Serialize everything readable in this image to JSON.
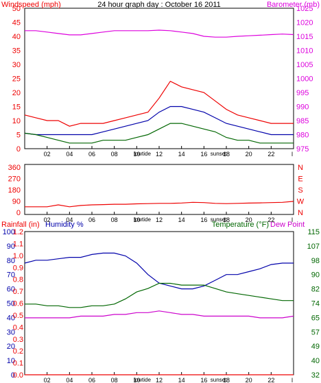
{
  "colors": {
    "red": "#ee0000",
    "magenta": "#dd00dd",
    "blue": "#0000aa",
    "green": "#006600",
    "dewpoint": "#cc00cc",
    "black": "#000000"
  },
  "x_tick_labels": [
    "02",
    "04",
    "06",
    "08",
    "10",
    "12",
    "14",
    "16",
    "18",
    "20",
    "22"
  ],
  "x_end_label": "l",
  "event_labels": {
    "lowtide": "lowtide",
    "sunset": "sunset"
  },
  "chart_data": [
    {
      "type": "line",
      "title": "24 hour graph day : October 16 2011",
      "left_label": "Windspeed (mph)",
      "right_label": "Barometer (mb)",
      "ylim_left": [
        0,
        50
      ],
      "ylim_right": [
        975,
        1025
      ],
      "yticks_left": [
        "0",
        "5",
        "10",
        "15",
        "20",
        "25",
        "30",
        "35",
        "40",
        "45",
        "50"
      ],
      "yticks_right": [
        "975",
        "980",
        "985",
        "990",
        "995",
        "1000",
        "1005",
        "1010",
        "1015",
        "1020",
        "1025"
      ],
      "x": [
        0,
        1,
        2,
        3,
        4,
        5,
        6,
        7,
        8,
        9,
        10,
        11,
        12,
        13,
        14,
        15,
        16,
        17,
        18,
        19,
        20,
        21,
        22,
        23,
        24
      ],
      "series": [
        {
          "color": "red",
          "values": [
            12,
            11,
            10,
            10,
            8,
            9,
            9,
            9,
            10,
            11,
            12,
            13,
            18,
            24,
            22,
            21,
            20,
            17,
            14,
            12,
            11,
            10,
            9,
            9,
            9
          ]
        },
        {
          "color": "blue",
          "values": [
            5.5,
            5,
            5,
            5,
            5,
            5,
            5,
            6,
            7,
            8,
            9,
            10,
            13,
            15,
            15,
            14,
            13,
            11,
            9,
            8,
            7,
            6,
            5,
            5,
            5
          ]
        },
        {
          "color": "green",
          "values": [
            5.5,
            5,
            4,
            3,
            2,
            2,
            2,
            3,
            3,
            3,
            4,
            5,
            7,
            9,
            9,
            8,
            7,
            6,
            4,
            3,
            3,
            2,
            2,
            2,
            2
          ]
        },
        {
          "color": "magenta",
          "values": [
            1017,
            1017,
            1016.5,
            1016,
            1015.5,
            1015.5,
            1016,
            1016.5,
            1017,
            1017,
            1017,
            1017,
            1017.2,
            1017,
            1016.5,
            1016,
            1015,
            1014.7,
            1014.7,
            1015,
            1015.2,
            1015.4,
            1015.6,
            1015.8,
            1015.6
          ]
        }
      ]
    },
    {
      "type": "line",
      "title": "",
      "yticks_left": [
        "0",
        "90",
        "180",
        "270",
        "360"
      ],
      "ylim_left": [
        0,
        360
      ],
      "compass": [
        "N",
        "W",
        "S",
        "E",
        "N"
      ],
      "x": [
        0,
        1,
        2,
        3,
        4,
        5,
        6,
        7,
        8,
        9,
        10,
        11,
        12,
        13,
        14,
        15,
        16,
        17,
        18,
        19,
        20,
        21,
        22,
        23,
        24
      ],
      "series": [
        {
          "color": "red",
          "values": [
            45,
            45,
            45,
            60,
            45,
            55,
            60,
            62,
            65,
            65,
            68,
            70,
            72,
            72,
            75,
            80,
            78,
            72,
            70,
            72,
            74,
            76,
            78,
            80,
            88
          ]
        }
      ]
    },
    {
      "type": "line",
      "title": "",
      "label_rainfall": "Rainfall (in)",
      "label_humidity": "Humidity %",
      "label_temperature": "Temperature (°F)",
      "label_dewpoint": "Dew Point",
      "ylim_humidity": [
        0,
        100
      ],
      "ylim_temperature": [
        32,
        115
      ],
      "yticks_humidity": [
        "0",
        "10",
        "20",
        "30",
        "40",
        "50",
        "60",
        "70",
        "80",
        "90",
        "100"
      ],
      "yticks_rainfall": [
        "0.0",
        "0.1",
        "0.2",
        "0.3",
        "0.4",
        "0.5",
        "0.6",
        "0.7",
        "0.8",
        "0.9",
        "1.0",
        "1.1",
        "1.2"
      ],
      "yticks_temperature": [
        "32",
        "40",
        "49",
        "57",
        "65",
        "74",
        "82",
        "90",
        "98",
        "107",
        "115"
      ],
      "x": [
        0,
        1,
        2,
        3,
        4,
        5,
        6,
        7,
        8,
        9,
        10,
        11,
        12,
        13,
        14,
        15,
        16,
        17,
        18,
        19,
        20,
        21,
        22,
        23,
        24
      ],
      "series": [
        {
          "name": "Humidity %",
          "color": "blue",
          "values": [
            78,
            80,
            80,
            81,
            82,
            82,
            84,
            85,
            85,
            83,
            78,
            70,
            64,
            62,
            60,
            60,
            62,
            66,
            70,
            70,
            72,
            74,
            77,
            78,
            78
          ]
        },
        {
          "name": "Temperature (°F)",
          "color": "green",
          "values": [
            73,
            73,
            72,
            72,
            71,
            71,
            72,
            72,
            73,
            76,
            80,
            82,
            85,
            85,
            84,
            84,
            84,
            82,
            80,
            79,
            78,
            77,
            76,
            75,
            75
          ]
        },
        {
          "name": "Dew Point",
          "color": "dewpoint",
          "values": [
            65,
            65,
            65,
            65,
            65,
            66,
            66,
            66,
            67,
            67,
            68,
            68,
            69,
            68,
            67,
            67,
            66,
            66,
            66,
            66,
            66,
            65,
            65,
            65,
            66
          ]
        },
        {
          "name": "Rainfall (in)",
          "color": "red",
          "values": [
            0,
            0,
            0,
            0,
            0,
            0,
            0,
            0,
            0,
            0,
            0,
            0,
            0,
            0,
            0,
            0,
            0,
            0,
            0,
            0,
            0,
            0,
            0,
            0,
            0
          ]
        }
      ]
    }
  ]
}
